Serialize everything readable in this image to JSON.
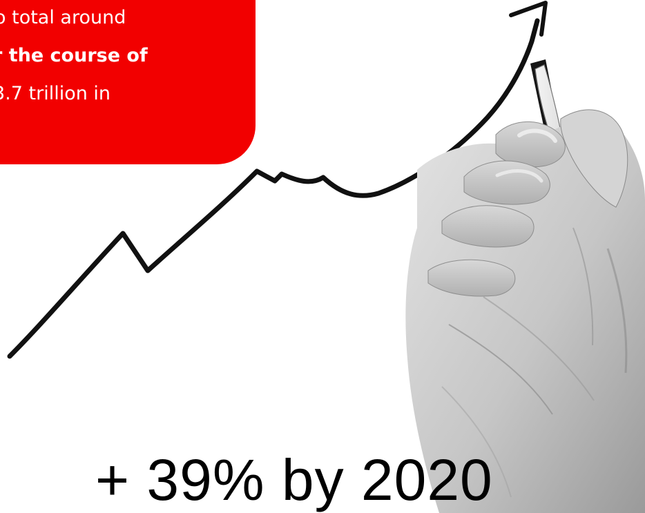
{
  "callout": {
    "line1": "o total around",
    "line2": "r the course of",
    "line3": "3.7 trillion in",
    "color": "#f20000"
  },
  "headline": {
    "text": "+ 39%  by  2020"
  },
  "icons": {
    "trend": "rising-trend-line-with-arrow",
    "hand": "hand-holding-marker"
  }
}
